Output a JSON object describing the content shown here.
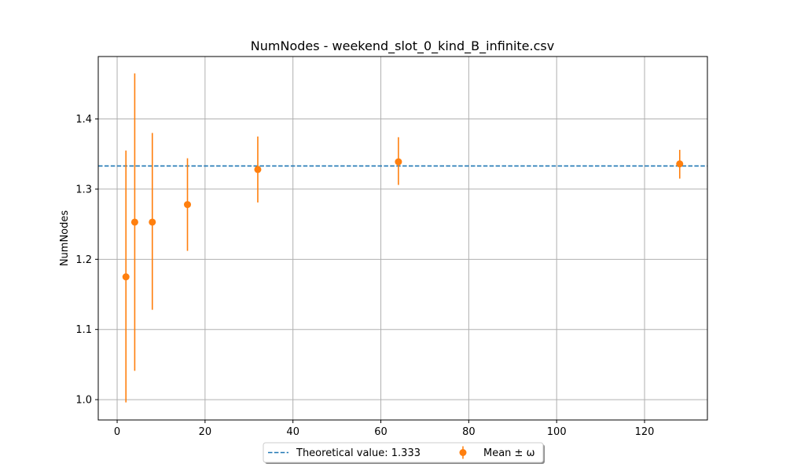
{
  "chart_data": {
    "type": "scatter",
    "title": "NumNodes - weekend_slot_0_kind_B_infinite.csv",
    "xlabel": "",
    "ylabel": "NumNodes",
    "xlim": [
      -4.3,
      134.3
    ],
    "ylim": [
      0.971,
      1.489
    ],
    "xticks": [
      0,
      20,
      40,
      60,
      80,
      100,
      120
    ],
    "xtick_labels": [
      "0",
      "20",
      "40",
      "60",
      "80",
      "100",
      "120"
    ],
    "yticks": [
      1.0,
      1.1,
      1.2,
      1.3,
      1.4
    ],
    "ytick_labels": [
      "1.0",
      "1.1",
      "1.2",
      "1.3",
      "1.4"
    ],
    "grid": true,
    "legend_position": "below-center",
    "series": [
      {
        "name": "Mean ± ω",
        "kind": "errorbar",
        "color": "#ff7f0e",
        "x": [
          2,
          4,
          8,
          16,
          32,
          64,
          128
        ],
        "y": [
          1.175,
          1.253,
          1.253,
          1.278,
          1.328,
          1.339,
          1.336
        ],
        "err_low": [
          0.996,
          1.041,
          1.128,
          1.212,
          1.281,
          1.306,
          1.315
        ],
        "err_high": [
          1.355,
          1.465,
          1.38,
          1.344,
          1.375,
          1.374,
          1.356
        ]
      }
    ],
    "reference_line": {
      "name": "Theoretical value: 1.333",
      "y": 1.333,
      "style": "dashed",
      "color": "#1f77b4"
    }
  }
}
